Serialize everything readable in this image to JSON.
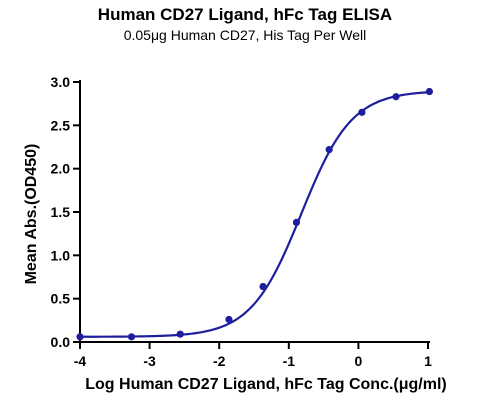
{
  "chart_data": {
    "type": "scatter",
    "title": "Human CD27 Ligand, hFc Tag ELISA",
    "subtitle": "0.05μg Human CD27, His Tag Per Well",
    "xlabel": "Log Human CD27 Ligand, hFc Tag Conc.(μg/ml)",
    "ylabel": "Mean Abs.(OD450)",
    "xlim": [
      -4,
      1
    ],
    "ylim": [
      0,
      3.0
    ],
    "x_ticks": [
      -4,
      -3,
      -2,
      -1,
      0,
      1
    ],
    "x_tick_labels": [
      "-4",
      "-3",
      "-2",
      "-1",
      "0",
      "1"
    ],
    "y_ticks": [
      0.0,
      0.5,
      1.0,
      1.5,
      2.0,
      2.5,
      3.0
    ],
    "y_tick_labels": [
      "0.0",
      "0.5",
      "1.0",
      "1.5",
      "2.0",
      "2.5",
      "3.0"
    ],
    "grid": false,
    "series": [
      {
        "x": [
          -4.0,
          -3.26,
          -2.56,
          -1.86,
          -1.37,
          -0.89,
          -0.42,
          0.05,
          0.54,
          1.02
        ],
        "y": [
          0.06,
          0.06,
          0.09,
          0.26,
          0.64,
          1.38,
          2.22,
          2.65,
          2.83,
          2.89
        ]
      }
    ],
    "fit_curve": {
      "bottom": 0.06,
      "top": 2.9,
      "log_ec50": -0.82,
      "hill_slope": 1.2
    },
    "color": "#1f1f9e"
  }
}
